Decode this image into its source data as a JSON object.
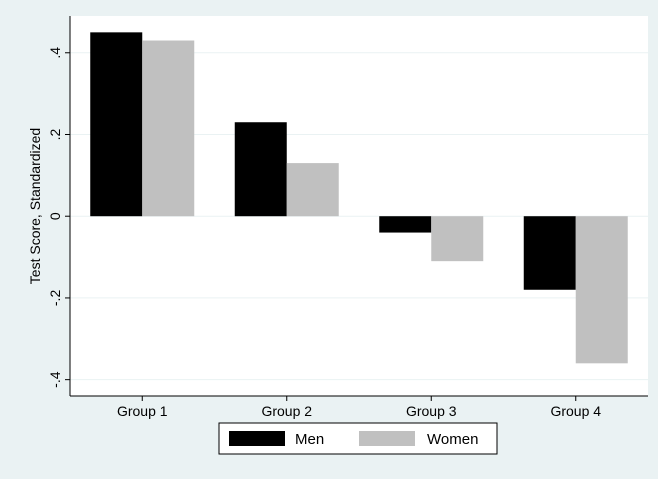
{
  "chart_data": {
    "type": "bar",
    "title": "",
    "xlabel": "",
    "ylabel": "Test Score, Standardized",
    "categories": [
      "Group 1",
      "Group 2",
      "Group 3",
      "Group 4"
    ],
    "series": [
      {
        "name": "Men",
        "values": [
          0.45,
          0.23,
          -0.04,
          -0.18
        ]
      },
      {
        "name": "Women",
        "values": [
          0.43,
          0.13,
          -0.11,
          -0.36
        ]
      }
    ],
    "ylim": [
      -0.44,
      0.49
    ],
    "yticks": [
      -0.4,
      -0.2,
      0,
      0.2,
      0.4
    ],
    "ytick_labels": [
      "-.4",
      "-.2",
      "0",
      ".2",
      ".4"
    ],
    "grid": true,
    "legend_position": "bottom",
    "colors": {
      "series": [
        "#000000",
        "#c0c0c0"
      ],
      "background": "#eaf2f3",
      "plot_background": "#ffffff",
      "grid": "#eaf2f3"
    }
  }
}
